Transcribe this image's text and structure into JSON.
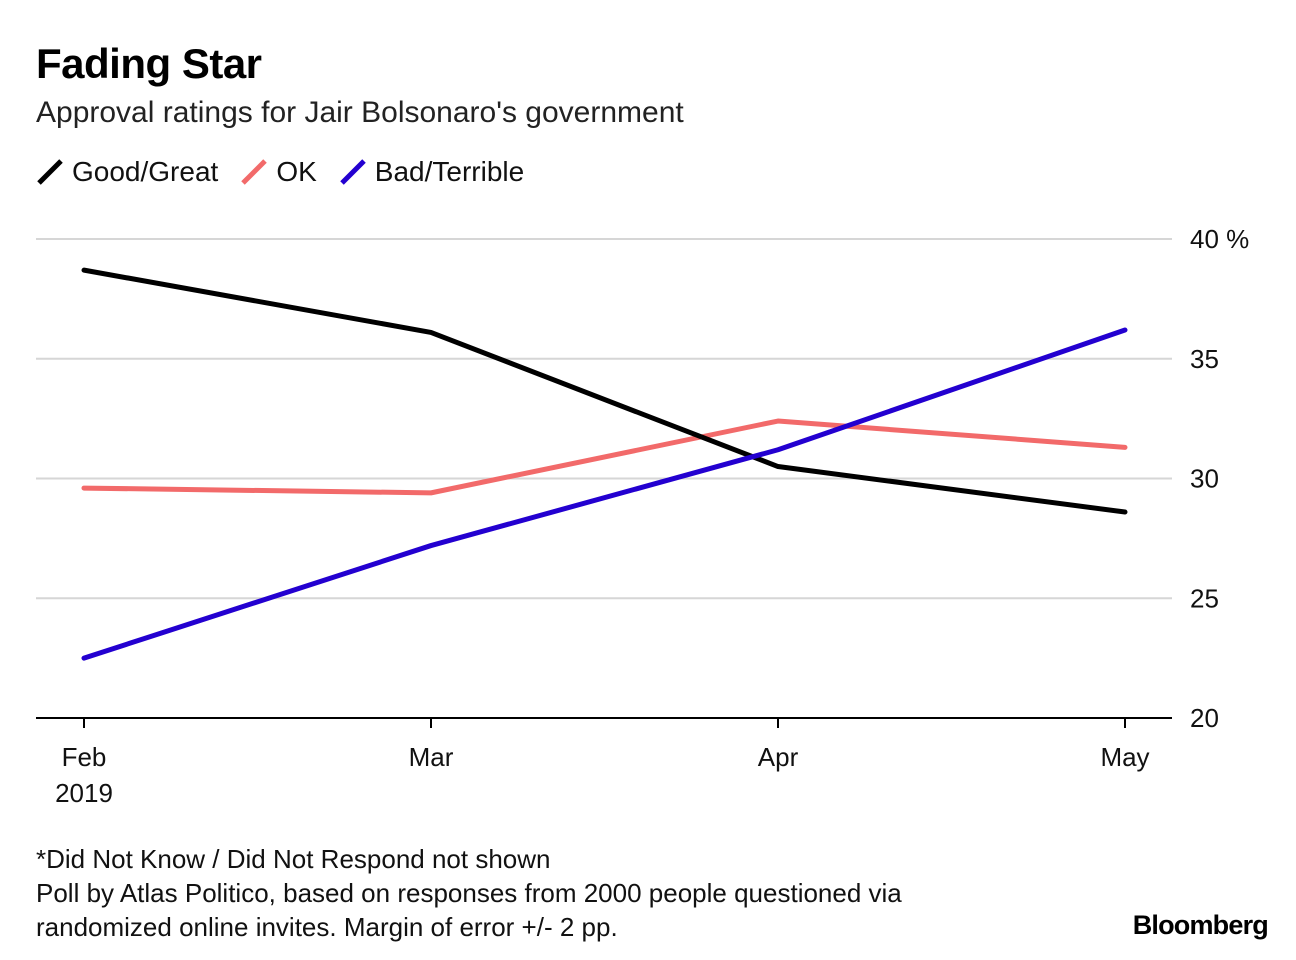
{
  "title": "Fading Star",
  "subtitle": "Approval ratings for Jair Bolsonaro's government",
  "notes": [
    "*Did Not Know / Did Not Respond not shown",
    "Poll by Atlas Politico, based on responses from 2000 people questioned via",
    "randomized online invites. Margin of error +/- 2 pp."
  ],
  "brand": "Bloomberg",
  "legend": [
    {
      "label": "Good/Great",
      "color": "#000000"
    },
    {
      "label": "OK",
      "color": "#f26a6a"
    },
    {
      "label": "Bad/Terrible",
      "color": "#2300d0"
    }
  ],
  "chart_data": {
    "type": "line",
    "title": "Fading Star",
    "subtitle": "Approval ratings for Jair Bolsonaro's government",
    "categories": [
      "Feb",
      "Mar",
      "Apr",
      "May"
    ],
    "category_sublabels": [
      "2019",
      "",
      "",
      ""
    ],
    "series": [
      {
        "name": "Good/Great",
        "color": "#000000",
        "values": [
          38.7,
          36.1,
          30.5,
          28.6
        ]
      },
      {
        "name": "OK",
        "color": "#f26a6a",
        "values": [
          29.6,
          29.4,
          32.4,
          31.3
        ]
      },
      {
        "name": "Bad/Terrible",
        "color": "#2300d0",
        "values": [
          22.5,
          27.2,
          31.2,
          36.2
        ]
      }
    ],
    "ylim": [
      20,
      40
    ],
    "yticks": [
      20,
      25,
      30,
      35,
      40
    ],
    "ytick_labels": [
      "20",
      "25",
      "30",
      "35",
      "40 %"
    ],
    "y_axis_side": "right",
    "grid": true,
    "xlabel": "",
    "ylabel": ""
  }
}
